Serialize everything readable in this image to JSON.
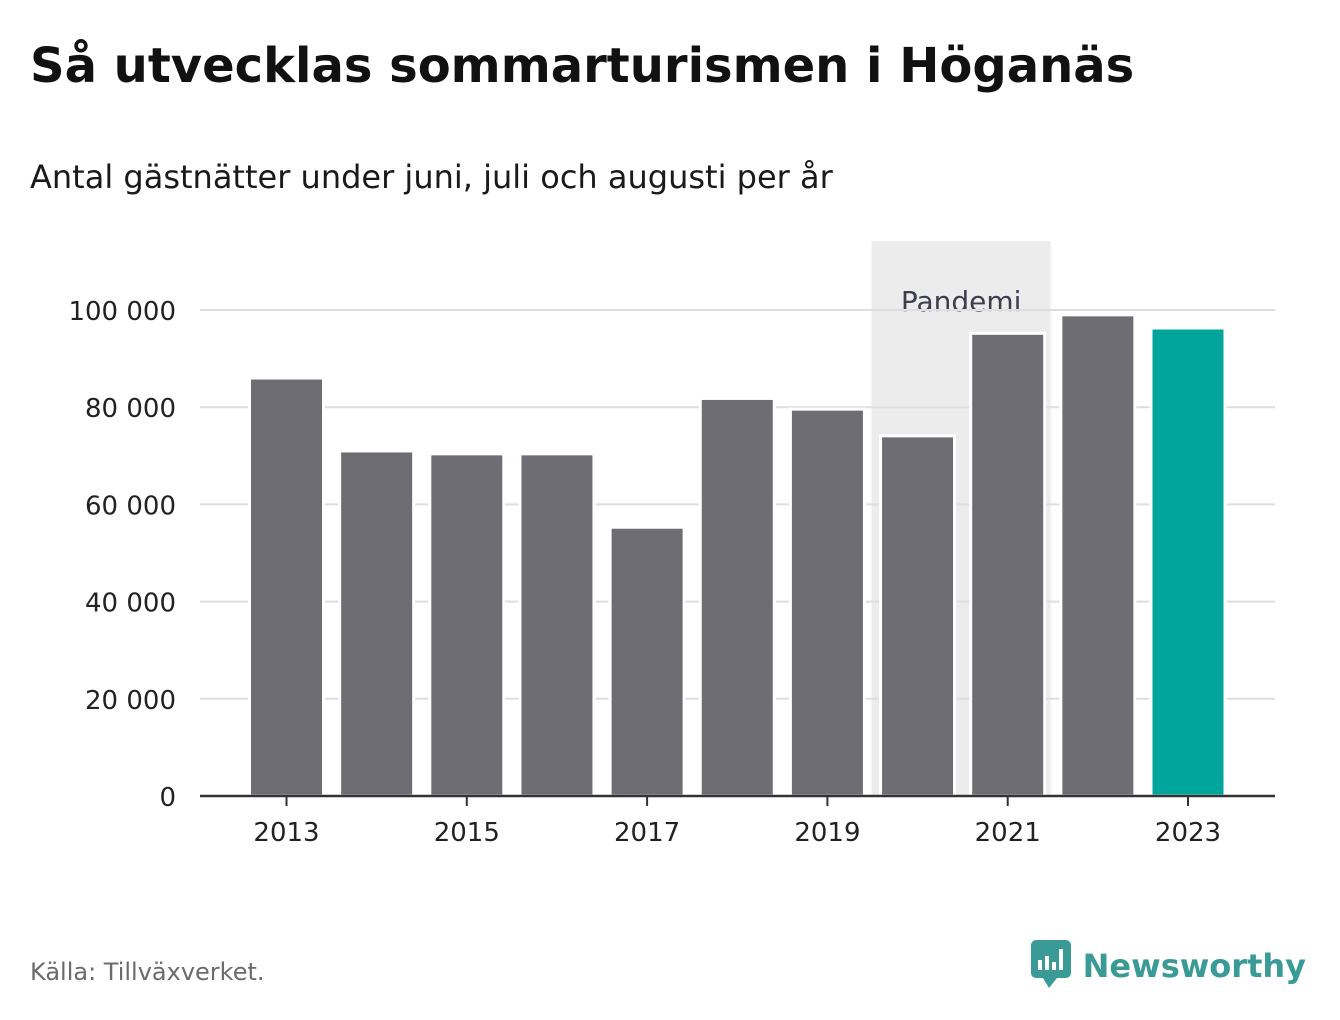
{
  "title": "Så utvecklas sommarturismen i Höganäs",
  "subtitle": "Antal gästnätter under juni, juli och augusti per år",
  "source": "Källa: Tillväxverket.",
  "brand": {
    "name": "Newsworthy",
    "icon": "newsworthy-logo-icon"
  },
  "colors": {
    "bar": "#6e6d73",
    "highlight": "#00a69c",
    "pandemic_band": "#ececec",
    "grid": "#dedede",
    "axis": "#333333",
    "brand": "#3a9b96"
  },
  "chart_data": {
    "type": "bar",
    "title": "Så utvecklas sommarturismen i Höganäs",
    "subtitle": "Antal gästnätter under juni, juli och augusti per år",
    "categories": [
      "2013",
      "2014",
      "2015",
      "2016",
      "2017",
      "2018",
      "2019",
      "2020",
      "2021",
      "2022",
      "2023"
    ],
    "values": [
      86000,
      71000,
      70400,
      70400,
      55300,
      81800,
      79600,
      74100,
      95200,
      99000,
      96300
    ],
    "highlight": "2023",
    "ylim": [
      0,
      110000
    ],
    "yticks": [
      0,
      20000,
      40000,
      60000,
      80000,
      100000
    ],
    "ytick_labels": [
      "0",
      "20 000",
      "40 000",
      "60 000",
      "80 000",
      "100 000"
    ],
    "xtick_labels": [
      "2013",
      "2015",
      "2017",
      "2019",
      "2021",
      "2023"
    ],
    "grid": true,
    "annotation": {
      "label": "Pandemi",
      "from": "2020",
      "to": "2021"
    },
    "source": "Källa: Tillväxverket."
  }
}
